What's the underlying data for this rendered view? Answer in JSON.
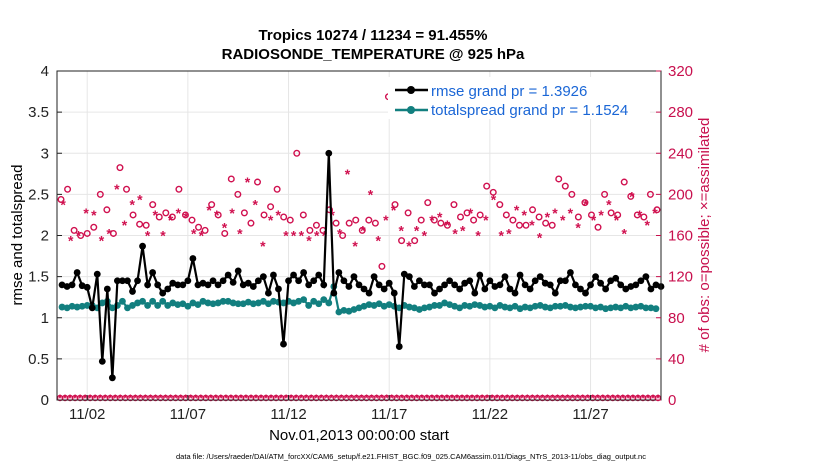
{
  "chart_data": {
    "type": "line",
    "title_line1": "Tropics 10274 / 11234 = 91.455%",
    "title_line2": "RADIOSONDE_TEMPERATURE @ 925 hPa",
    "xlabel": "Nov.01,2013 00:00:00 start",
    "ylabel_left": "rmse and totalspread",
    "ylabel_right": "# of obs: o=possible; ×=assimilated",
    "footnote": "data file: /Users/raeder/DAI/ATM_forcXX/CAM6_setup/f.e21.FHIST_BGC.f09_025.CAM6assim.011/Diags_NTrS_2013-11/obs_diag_output.nc",
    "xlim": [
      0.5,
      30.5
    ],
    "ylim_left": [
      0,
      4
    ],
    "ylim_right": [
      0,
      320
    ],
    "yticks_left": [
      "0",
      "0.5",
      "1",
      "1.5",
      "2",
      "2.5",
      "3",
      "3.5",
      "4"
    ],
    "yticks_right": [
      "0",
      "40",
      "80",
      "120",
      "160",
      "200",
      "240",
      "280",
      "320"
    ],
    "x_ticks": [
      {
        "day": 2,
        "label": "11/02"
      },
      {
        "day": 7,
        "label": "11/07"
      },
      {
        "day": 12,
        "label": "11/12"
      },
      {
        "day": 17,
        "label": "11/17"
      },
      {
        "day": 22,
        "label": "11/22"
      },
      {
        "day": 27,
        "label": "11/27"
      }
    ],
    "legend": [
      {
        "label": "rmse grand pr = 1.3926",
        "color": "#000000"
      },
      {
        "label": "totalspread grand pr = 1.1524",
        "color": "#127f7f"
      }
    ],
    "series_x_start": 0.75,
    "series_x_step": 0.25,
    "rmse": [
      1.4,
      1.38,
      1.4,
      1.55,
      1.39,
      1.37,
      1.12,
      1.53,
      0.47,
      1.35,
      0.27,
      1.45,
      1.45,
      1.45,
      1.32,
      1.45,
      1.87,
      1.4,
      1.55,
      1.4,
      1.3,
      1.35,
      1.42,
      1.4,
      1.4,
      1.45,
      1.72,
      1.4,
      1.42,
      1.4,
      1.45,
      1.4,
      1.45,
      1.52,
      1.43,
      1.57,
      1.4,
      1.42,
      1.38,
      1.45,
      1.5,
      1.3,
      1.52,
      1.35,
      0.68,
      1.45,
      1.52,
      1.45,
      1.55,
      1.4,
      1.45,
      1.52,
      1.4,
      3.0,
      1.3,
      1.55,
      1.45,
      1.38,
      1.5,
      1.4,
      1.35,
      1.3,
      1.5,
      1.4,
      1.35,
      1.42,
      1.3,
      0.65,
      1.53,
      1.5,
      1.38,
      1.45,
      1.4,
      1.4,
      1.3,
      1.35,
      1.4,
      1.45,
      1.4,
      1.35,
      1.42,
      1.45,
      1.3,
      1.52,
      1.35,
      1.45,
      1.38,
      1.4,
      1.5,
      1.35,
      1.3,
      1.52,
      1.4,
      1.35,
      1.45,
      1.5,
      1.42,
      1.4,
      1.3,
      1.45,
      1.45,
      1.55,
      1.4,
      1.35,
      1.3,
      1.4,
      1.5,
      1.42,
      1.35,
      1.45,
      1.48,
      1.4,
      1.35,
      1.38,
      1.4,
      1.45,
      1.5,
      1.35,
      1.4,
      1.38
    ],
    "totalspread": [
      1.13,
      1.12,
      1.14,
      1.13,
      1.14,
      1.15,
      1.15,
      1.12,
      1.18,
      1.2,
      1.12,
      1.15,
      1.2,
      1.12,
      1.15,
      1.18,
      1.2,
      1.15,
      1.2,
      1.15,
      1.2,
      1.15,
      1.18,
      1.16,
      1.17,
      1.14,
      1.18,
      1.16,
      1.2,
      1.18,
      1.17,
      1.18,
      1.2,
      1.2,
      1.18,
      1.17,
      1.17,
      1.19,
      1.17,
      1.18,
      1.2,
      1.17,
      1.2,
      1.19,
      1.18,
      1.2,
      1.18,
      1.2,
      1.22,
      1.15,
      1.2,
      1.17,
      1.22,
      1.18,
      1.38,
      1.07,
      1.09,
      1.08,
      1.1,
      1.12,
      1.14,
      1.16,
      1.15,
      1.17,
      1.14,
      1.16,
      1.14,
      1.12,
      1.15,
      1.13,
      1.12,
      1.1,
      1.12,
      1.13,
      1.15,
      1.15,
      1.18,
      1.16,
      1.14,
      1.12,
      1.15,
      1.14,
      1.16,
      1.15,
      1.13,
      1.14,
      1.12,
      1.15,
      1.13,
      1.12,
      1.14,
      1.11,
      1.13,
      1.12,
      1.14,
      1.15,
      1.13,
      1.12,
      1.14,
      1.14,
      1.15,
      1.13,
      1.12,
      1.13,
      1.14,
      1.14,
      1.12,
      1.13,
      1.11,
      1.12,
      1.13,
      1.12,
      1.14,
      1.12,
      1.13,
      1.14,
      1.12,
      1.12,
      1.11
    ],
    "obs_possible": [
      195,
      205,
      165,
      160,
      162,
      168,
      200,
      185,
      162,
      226,
      205,
      180,
      171,
      170,
      190,
      178,
      182,
      178,
      205,
      180,
      175,
      168,
      165,
      190,
      180,
      162,
      215,
      200,
      182,
      172,
      212,
      180,
      188,
      205,
      178,
      175,
      240,
      180,
      165,
      170,
      165,
      185,
      172,
      160,
      172,
      175,
      165,
      175,
      172,
      130,
      295,
      190,
      155,
      182,
      155,
      175,
      192,
      175,
      172,
      170,
      190,
      178,
      182,
      175,
      180,
      208,
      202,
      190,
      180,
      175,
      170,
      170,
      185,
      178,
      172,
      170,
      215,
      208,
      200,
      178,
      192,
      180,
      168,
      200,
      182,
      180,
      212,
      198,
      180,
      178,
      200,
      185
    ],
    "obs_assimilated": [
      190,
      155,
      160,
      182,
      180,
      155,
      162,
      205,
      170,
      190,
      195,
      160,
      180,
      160,
      175,
      182,
      178,
      162,
      160,
      185,
      180,
      168,
      182,
      162,
      212,
      190,
      150,
      175,
      180,
      160,
      160,
      160,
      155,
      160,
      160,
      180,
      162,
      220,
      150,
      165,
      200,
      155,
      175,
      185,
      165,
      150,
      165,
      160,
      175,
      178,
      170,
      162,
      165,
      182,
      160,
      175,
      195,
      160,
      162,
      185,
      180,
      170,
      158,
      178,
      182,
      175,
      182,
      168,
      190,
      175,
      180,
      190,
      175,
      162,
      198,
      180,
      170,
      182
    ],
    "obs_possible_bottom_count": 120,
    "obs_assimilated_bottom_count": 120
  }
}
